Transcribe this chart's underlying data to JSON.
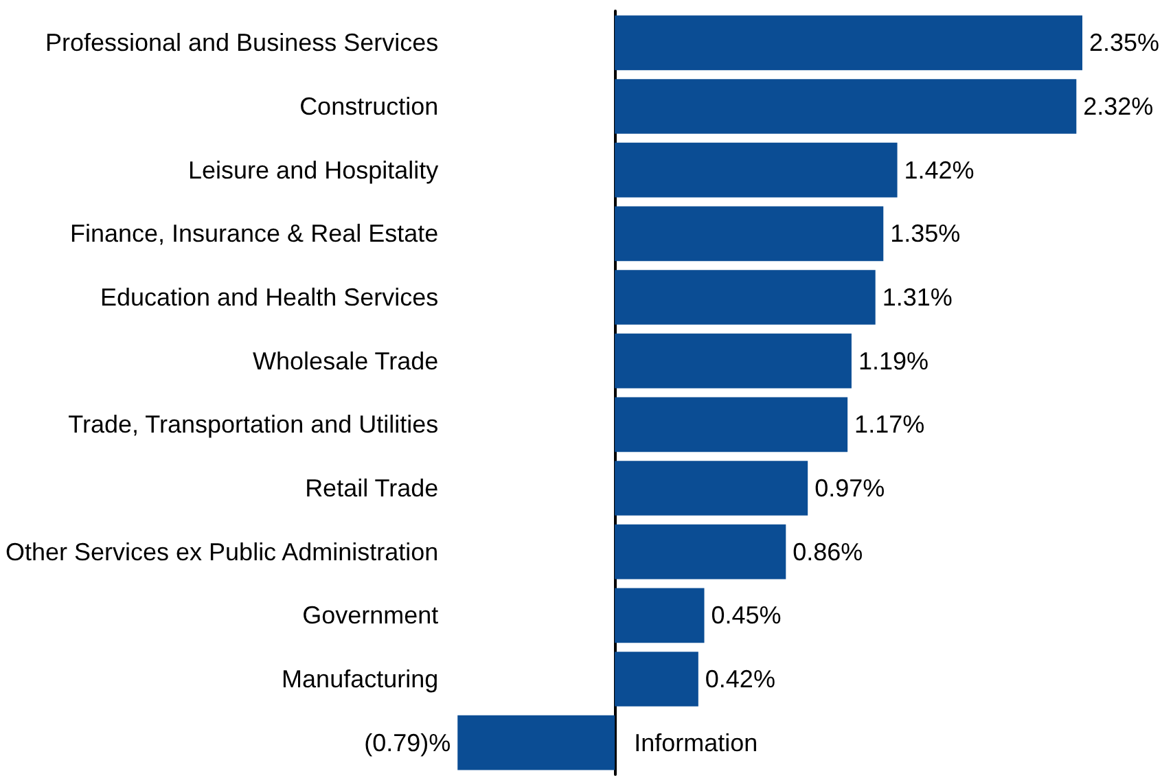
{
  "chart_data": {
    "type": "bar",
    "orientation": "horizontal",
    "categories": [
      "Professional and Business Services",
      "Construction",
      "Leisure and Hospitality",
      "Finance, Insurance & Real Estate",
      "Education and Health Services",
      "Wholesale Trade",
      "Trade, Transportation and Utilities",
      "Retail Trade",
      "Other Services ex Public Administration",
      "Government",
      "Manufacturing",
      "Information"
    ],
    "values": [
      2.35,
      2.32,
      1.42,
      1.35,
      1.31,
      1.19,
      1.17,
      0.97,
      0.86,
      0.45,
      0.42,
      -0.79
    ],
    "value_labels": [
      "2.35%",
      "2.32%",
      "1.42%",
      "1.35%",
      "1.31%",
      "1.19%",
      "1.17%",
      "0.97%",
      "0.86%",
      "0.45%",
      "0.42%",
      "(0.79)%"
    ],
    "color": "#0b4d94"
  }
}
